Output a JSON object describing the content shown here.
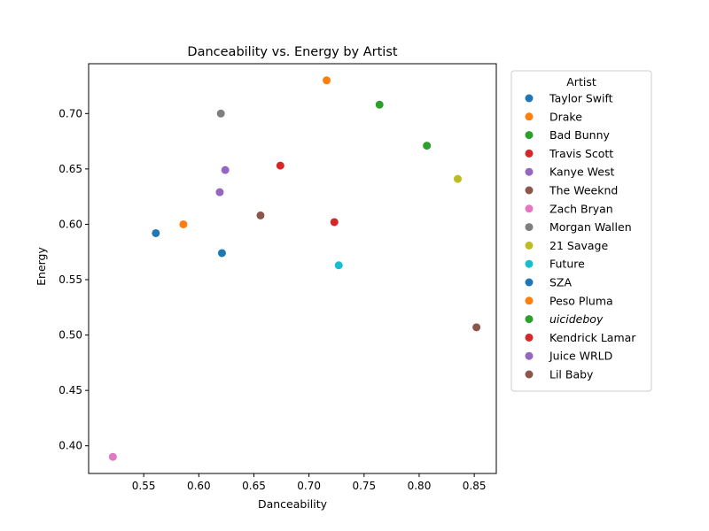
{
  "chart_data": {
    "type": "scatter",
    "title": "Danceability vs. Energy by Artist",
    "xlabel": "Danceability",
    "ylabel": "Energy",
    "xlim": [
      0.5,
      0.87
    ],
    "ylim": [
      0.375,
      0.745
    ],
    "xticks": [
      "0.55",
      "0.60",
      "0.65",
      "0.70",
      "0.75",
      "0.80",
      "0.85"
    ],
    "yticks": [
      "0.40",
      "0.45",
      "0.50",
      "0.55",
      "0.60",
      "0.65",
      "0.70"
    ],
    "grid": false,
    "legend_title": "Artist",
    "legend_position": "outside-right",
    "series": [
      {
        "name": "Taylor Swift",
        "color": "#1f77b4",
        "x": 0.561,
        "y": 0.592
      },
      {
        "name": "Drake",
        "color": "#ff7f0e",
        "x": 0.716,
        "y": 0.73
      },
      {
        "name": "Bad Bunny",
        "color": "#2ca02c",
        "x": 0.764,
        "y": 0.708
      },
      {
        "name": "Travis Scott",
        "color": "#d62728",
        "x": 0.674,
        "y": 0.653
      },
      {
        "name": "Kanye West",
        "color": "#9467bd",
        "x": 0.624,
        "y": 0.649
      },
      {
        "name": "The Weeknd",
        "color": "#8c564b",
        "x": 0.656,
        "y": 0.608
      },
      {
        "name": "Zach Bryan",
        "color": "#e377c2",
        "x": 0.522,
        "y": 0.39
      },
      {
        "name": "Morgan Wallen",
        "color": "#7f7f7f",
        "x": 0.62,
        "y": 0.7
      },
      {
        "name": "21 Savage",
        "color": "#bcbd22",
        "x": 0.835,
        "y": 0.641
      },
      {
        "name": "Future",
        "color": "#17becf",
        "x": 0.727,
        "y": 0.563
      },
      {
        "name": "SZA",
        "color": "#1f77b4",
        "x": 0.621,
        "y": 0.574
      },
      {
        "name": "Peso Pluma",
        "color": "#ff7f0e",
        "x": 0.586,
        "y": 0.6
      },
      {
        "name": "uicideboy",
        "color": "#2ca02c",
        "x": 0.807,
        "y": 0.671,
        "italic": true
      },
      {
        "name": "Kendrick Lamar",
        "color": "#d62728",
        "x": 0.723,
        "y": 0.602
      },
      {
        "name": "Juice WRLD",
        "color": "#9467bd",
        "x": 0.619,
        "y": 0.629
      },
      {
        "name": "Lil Baby",
        "color": "#8c564b",
        "x": 0.852,
        "y": 0.507
      }
    ]
  }
}
